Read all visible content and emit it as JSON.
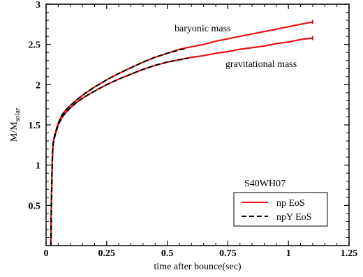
{
  "chart_data": {
    "type": "line",
    "xlabel": "time after bounce(sec)",
    "ylabel": "M/M",
    "ylabel_sub": "solar",
    "xlim": [
      0,
      1.25
    ],
    "ylim": [
      0,
      3
    ],
    "xticks": [
      {
        "value": 0,
        "label": "0"
      },
      {
        "value": 0.25,
        "label": "0.25"
      },
      {
        "value": 0.5,
        "label": "0.5"
      },
      {
        "value": 0.75,
        "label": "0.75"
      },
      {
        "value": 1,
        "label": "1"
      },
      {
        "value": 1.25,
        "label": "1.25"
      }
    ],
    "yticks": [
      {
        "value": 0.5,
        "label": "0.5"
      },
      {
        "value": 1,
        "label": "1"
      },
      {
        "value": 1.5,
        "label": "1.5"
      },
      {
        "value": 2,
        "label": "2"
      },
      {
        "value": 2.5,
        "label": "2.5"
      },
      {
        "value": 3,
        "label": "3"
      }
    ],
    "grid": false,
    "legend_position": "bottom-right",
    "model_label": "S40WH07",
    "annotations": [
      {
        "text": "baryonic mass",
        "x": 0.53,
        "y": 2.66
      },
      {
        "text": "gravitational mass",
        "x": 0.74,
        "y": 2.22
      }
    ],
    "series": [
      {
        "name": "np EoS",
        "role": "baryonic",
        "color": "#ee1111",
        "dash": "solid",
        "x": [
          0.02,
          0.022,
          0.025,
          0.028,
          0.032,
          0.04,
          0.05,
          0.065,
          0.08,
          0.1,
          0.13,
          0.16,
          0.2,
          0.25,
          0.3,
          0.35,
          0.4,
          0.45,
          0.5,
          0.55,
          0.6,
          0.65,
          0.7,
          0.75,
          0.8,
          0.85,
          0.9,
          0.95,
          1.0,
          1.05,
          1.1
        ],
        "y": [
          0.0,
          0.5,
          1.0,
          1.24,
          1.33,
          1.42,
          1.52,
          1.62,
          1.68,
          1.74,
          1.82,
          1.89,
          1.97,
          2.06,
          2.14,
          2.21,
          2.28,
          2.34,
          2.39,
          2.44,
          2.47,
          2.5,
          2.54,
          2.57,
          2.6,
          2.63,
          2.66,
          2.69,
          2.72,
          2.75,
          2.78
        ]
      },
      {
        "name": "np EoS",
        "role": "gravitational",
        "color": "#ee1111",
        "dash": "solid",
        "x": [
          0.02,
          0.022,
          0.025,
          0.028,
          0.032,
          0.04,
          0.05,
          0.065,
          0.08,
          0.1,
          0.13,
          0.16,
          0.2,
          0.25,
          0.3,
          0.35,
          0.4,
          0.45,
          0.5,
          0.55,
          0.6,
          0.65,
          0.7,
          0.75,
          0.8,
          0.85,
          0.9,
          0.95,
          1.0,
          1.05,
          1.1
        ],
        "y": [
          0.0,
          0.5,
          1.0,
          1.22,
          1.31,
          1.4,
          1.5,
          1.59,
          1.65,
          1.71,
          1.79,
          1.85,
          1.92,
          2.0,
          2.07,
          2.13,
          2.19,
          2.24,
          2.28,
          2.31,
          2.34,
          2.36,
          2.39,
          2.41,
          2.44,
          2.46,
          2.48,
          2.51,
          2.53,
          2.56,
          2.58
        ]
      },
      {
        "name": "npY EoS",
        "role": "baryonic",
        "color": "#000000",
        "dash": "dashed",
        "x": [
          0.02,
          0.022,
          0.025,
          0.028,
          0.032,
          0.04,
          0.05,
          0.065,
          0.08,
          0.1,
          0.13,
          0.16,
          0.2,
          0.25,
          0.3,
          0.35,
          0.4,
          0.45,
          0.5,
          0.55,
          0.58
        ],
        "y": [
          0.0,
          0.5,
          1.0,
          1.24,
          1.33,
          1.42,
          1.52,
          1.62,
          1.68,
          1.74,
          1.82,
          1.89,
          1.97,
          2.06,
          2.14,
          2.21,
          2.28,
          2.34,
          2.39,
          2.43,
          2.45
        ]
      },
      {
        "name": "npY EoS",
        "role": "gravitational",
        "color": "#000000",
        "dash": "dashed",
        "x": [
          0.02,
          0.022,
          0.025,
          0.028,
          0.032,
          0.04,
          0.05,
          0.065,
          0.08,
          0.1,
          0.13,
          0.16,
          0.2,
          0.25,
          0.3,
          0.35,
          0.4,
          0.45,
          0.5,
          0.55,
          0.59
        ],
        "y": [
          0.0,
          0.5,
          1.0,
          1.22,
          1.31,
          1.4,
          1.5,
          1.59,
          1.65,
          1.71,
          1.79,
          1.85,
          1.92,
          2.0,
          2.07,
          2.13,
          2.19,
          2.24,
          2.28,
          2.31,
          2.33
        ]
      }
    ],
    "legend": [
      {
        "label": "np EoS",
        "color": "#ee1111",
        "dash": "solid"
      },
      {
        "label": "npY EoS",
        "color": "#000000",
        "dash": "dashed"
      }
    ]
  }
}
